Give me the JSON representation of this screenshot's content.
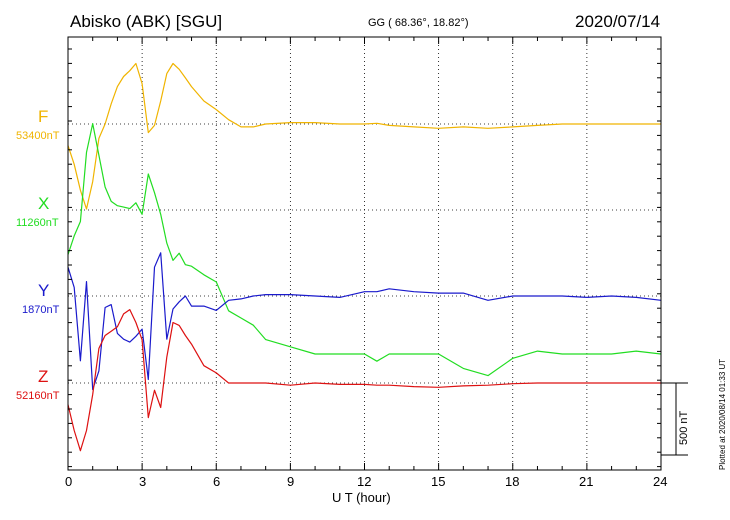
{
  "header": {
    "title": "Abisko (ABK)  [SGU]",
    "coords": "GG ( 68.36°,  18.82°)",
    "date": "2020/07/14"
  },
  "plotted_note": "Plotted at 2020/08/14 01:33 UT",
  "scale_label": "500 nT",
  "chart_data": {
    "type": "line",
    "title": "Abisko (ABK)  [SGU]",
    "xlabel": "U T (hour)",
    "ylabel": "",
    "xlim": [
      0,
      24
    ],
    "x_ticks": [
      0,
      3,
      6,
      9,
      12,
      15,
      18,
      21,
      24
    ],
    "scale_bar_nT": 500,
    "grid": "dotted vertical every 3 h, dotted baseline per component",
    "x": [
      0,
      0.25,
      0.5,
      0.75,
      1,
      1.25,
      1.5,
      1.75,
      2,
      2.25,
      2.5,
      2.75,
      3,
      3.25,
      3.5,
      3.75,
      4,
      4.25,
      4.5,
      4.75,
      5,
      5.5,
      6,
      6.5,
      7,
      7.5,
      8,
      9,
      10,
      11,
      12,
      12.5,
      13,
      14,
      15,
      16,
      17,
      18,
      19,
      20,
      21,
      22,
      23,
      24
    ],
    "series": [
      {
        "name": "F",
        "baseline": "53400nT",
        "color": "#f0b400",
        "values": [
          -150,
          -280,
          -460,
          -590,
          -400,
          -100,
          0,
          140,
          260,
          330,
          370,
          420,
          280,
          -60,
          -10,
          160,
          350,
          420,
          380,
          320,
          260,
          160,
          100,
          30,
          -20,
          -20,
          0,
          10,
          10,
          0,
          0,
          5,
          -10,
          -20,
          -30,
          -20,
          -30,
          -20,
          -10,
          0,
          0,
          0,
          0,
          0
        ]
      },
      {
        "name": "X",
        "baseline": "11260nT",
        "color": "#22dd22",
        "values": [
          -310,
          -180,
          -80,
          400,
          600,
          380,
          160,
          60,
          30,
          20,
          10,
          50,
          -30,
          250,
          120,
          -30,
          -230,
          -350,
          -300,
          -380,
          -390,
          -450,
          -500,
          -700,
          -750,
          -800,
          -900,
          -950,
          -1000,
          -1000,
          -1000,
          -1050,
          -1000,
          -1000,
          -1000,
          -1100,
          -1150,
          -1030,
          -980,
          -1000,
          -1000,
          -1000,
          -980,
          -1000
        ]
      },
      {
        "name": "Y",
        "baseline": "1870nT",
        "color": "#1a1acc",
        "values": [
          200,
          60,
          -450,
          100,
          -650,
          -520,
          -80,
          -60,
          -260,
          -300,
          -320,
          -280,
          -230,
          -580,
          200,
          300,
          -300,
          -90,
          -40,
          0,
          -70,
          -70,
          -100,
          -30,
          -20,
          0,
          10,
          10,
          0,
          -10,
          30,
          30,
          50,
          30,
          20,
          20,
          -30,
          0,
          0,
          0,
          -10,
          0,
          -10,
          -30
        ]
      },
      {
        "name": "Z",
        "baseline": "52160nT",
        "color": "#dd1111",
        "values": [
          -150,
          -330,
          -470,
          -330,
          -80,
          240,
          330,
          360,
          390,
          480,
          510,
          420,
          300,
          -240,
          -50,
          -170,
          180,
          420,
          400,
          330,
          270,
          120,
          70,
          0,
          0,
          0,
          0,
          -15,
          0,
          -10,
          -10,
          -15,
          -15,
          -25,
          -30,
          -20,
          -15,
          -5,
          0,
          0,
          0,
          0,
          0,
          0
        ]
      }
    ]
  },
  "axes_text": {
    "xlabel": "U T (hour)",
    "x_tick_labels": [
      "0",
      "3",
      "6",
      "9",
      "12",
      "15",
      "18",
      "21",
      "24"
    ]
  }
}
